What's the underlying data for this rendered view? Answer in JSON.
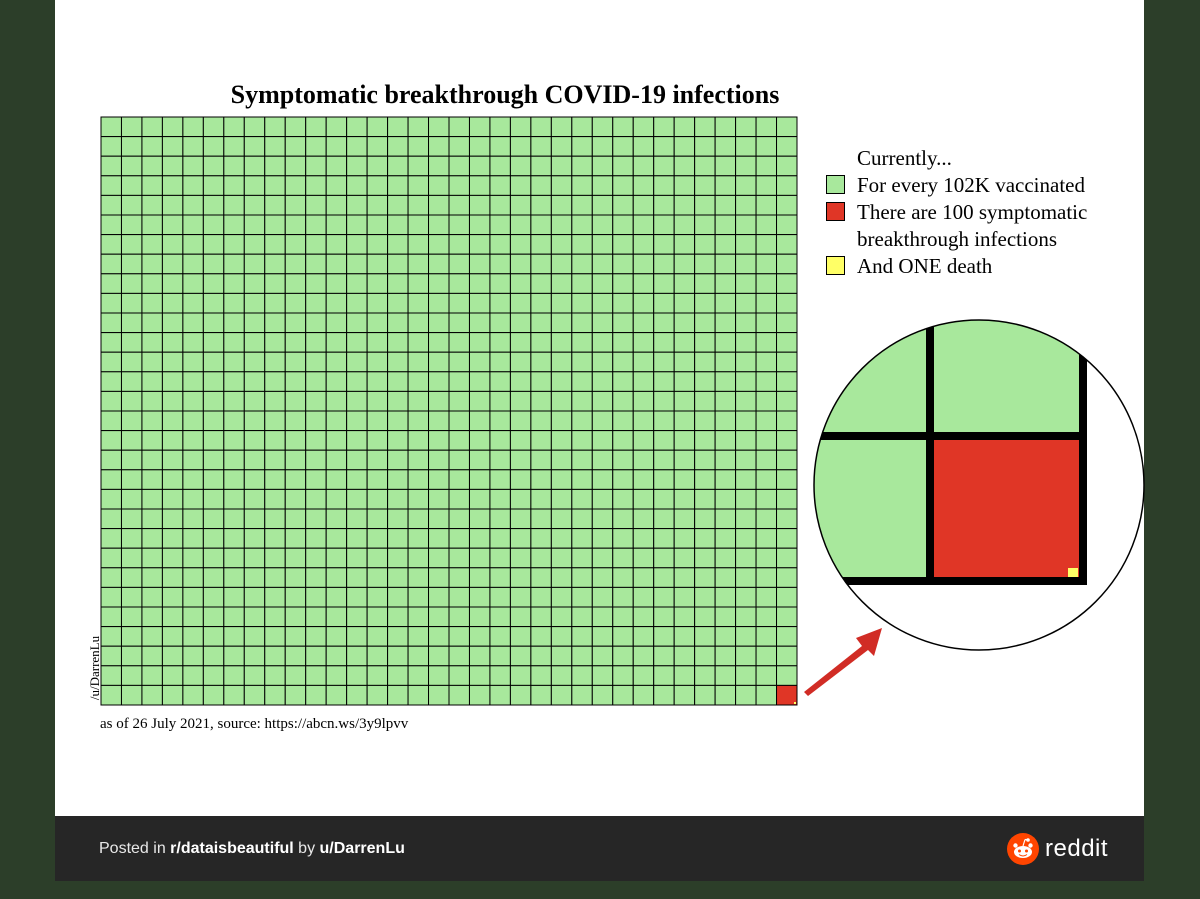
{
  "chart_data": {
    "type": "waffle",
    "title": "Symptomatic breakthrough COVID-19 infections",
    "grid": {
      "cols": 34,
      "rows": 30
    },
    "cells": [
      {
        "name": "For every 102K vaccinated",
        "color": "#a8e89c",
        "count": 1020
      },
      {
        "name": "There are 100 symptomatic breakthrough infections",
        "color": "#e03626",
        "count": 1
      },
      {
        "name": "And ONE death",
        "color": "#ffff66",
        "count": 0.01
      }
    ]
  },
  "legend": {
    "header": "Currently...",
    "items": [
      {
        "label": "For every 102K vaccinated",
        "color": "#a8e89c"
      },
      {
        "label": "There are 100 symptomatic",
        "label2": "breakthrough infections",
        "color": "#e03626"
      },
      {
        "label": "And ONE death",
        "color": "#ffff66"
      }
    ]
  },
  "annotations": {
    "author": "/u/DarrenLu",
    "source": "as of 26 July 2021, source: https://abcn.ws/3y9lpvv"
  },
  "zoom": {
    "colors": {
      "green": "#a8e89c",
      "red": "#e03626",
      "yellow": "#ffff66",
      "arrow": "#d12c25"
    }
  },
  "footer": {
    "prefix": "Posted in ",
    "subreddit": "r/dataisbeautiful",
    "by": " by ",
    "user": "u/DarrenLu",
    "brand": "reddit",
    "brand_color": "#ff4500"
  }
}
